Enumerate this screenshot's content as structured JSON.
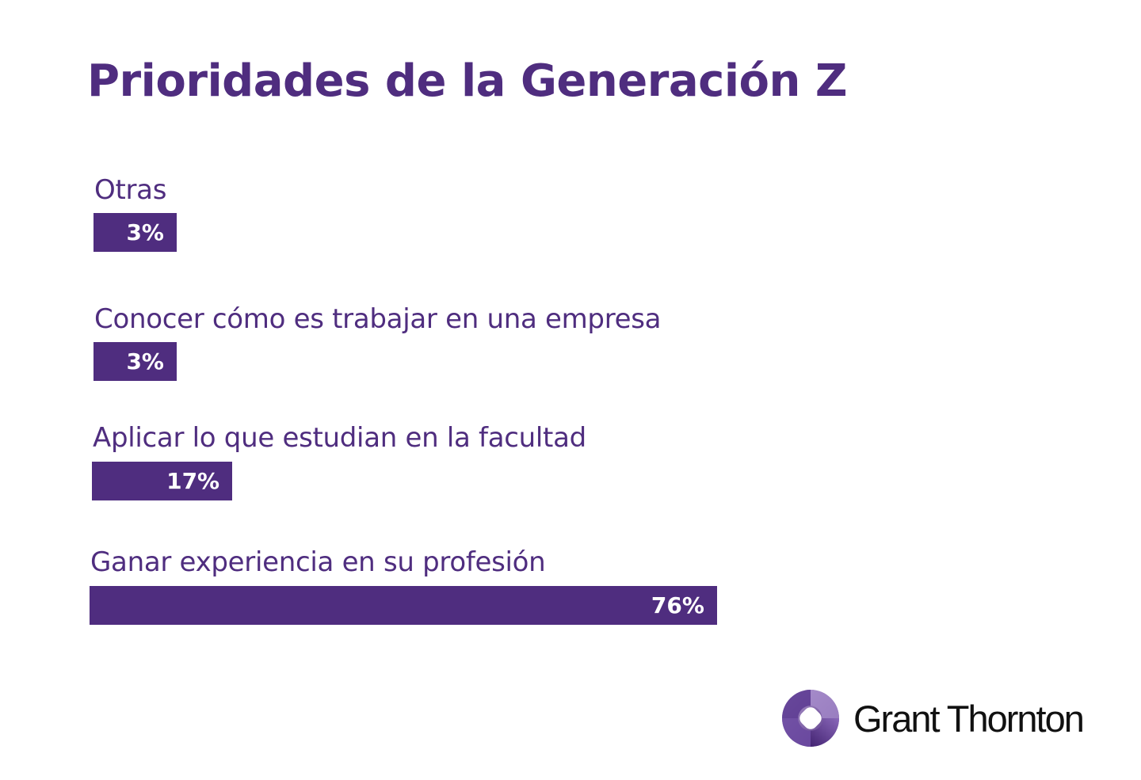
{
  "chart_data": {
    "type": "bar",
    "orientation": "horizontal",
    "title": "Prioridades de la Generación Z",
    "categories": [
      "Otras",
      "Conocer cómo es trabajar en una empresa",
      "Aplicar lo que estudian en la facultad",
      "Ganar experiencia en su profesión"
    ],
    "values": [
      3,
      3,
      17,
      76
    ],
    "value_labels": [
      "3%",
      "3%",
      "17%",
      "76%"
    ],
    "unit": "%",
    "xlabel": "",
    "ylabel": "",
    "grid": false,
    "legend": "none",
    "bar_color": "#4f2d7f"
  },
  "brand": {
    "name": "Grant Thornton",
    "logo_icon": "grant-thornton-swirl-icon"
  }
}
